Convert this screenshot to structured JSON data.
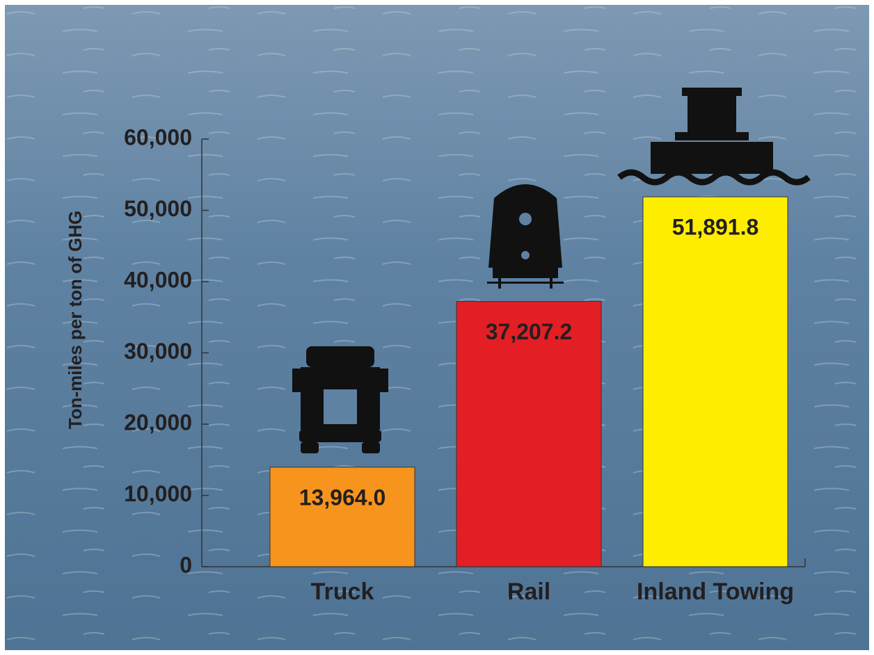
{
  "chart_data": {
    "type": "bar",
    "y_label": "Ton-miles per ton of GHG",
    "categories": [
      "Truck",
      "Rail",
      "Inland Towing"
    ],
    "values": [
      13964.0,
      37207.2,
      51891.8
    ],
    "value_labels": [
      "13,964.0",
      "37,207.2",
      "51,891.8"
    ],
    "colors": [
      "#f7941d",
      "#e31e24",
      "#ffed00"
    ],
    "ylim": [
      0,
      60000
    ],
    "yticks": [
      0,
      {
        "value": 10000,
        "label": "10,000"
      },
      {
        "value": 20000,
        "label": "20,000"
      },
      {
        "value": 30000,
        "label": "30,000"
      },
      {
        "value": 40000,
        "label": "40,000"
      },
      {
        "value": 50000,
        "label": "50,000"
      },
      {
        "value": 60000,
        "label": "60,000"
      }
    ]
  }
}
